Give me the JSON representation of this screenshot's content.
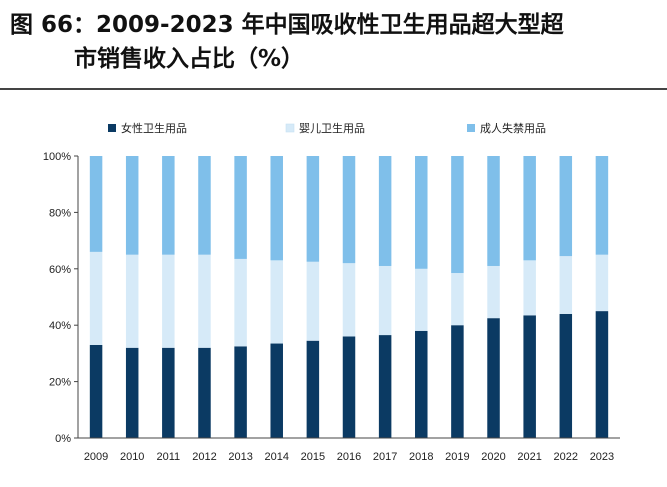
{
  "figure": {
    "title_line1": "图 66：2009-2023 年中国吸收性卫生用品超大型超",
    "title_line2": "市销售收入占比（%）"
  },
  "chart_data": {
    "type": "bar",
    "stacked": true,
    "categories": [
      "2009",
      "2010",
      "2011",
      "2012",
      "2013",
      "2014",
      "2015",
      "2016",
      "2017",
      "2018",
      "2019",
      "2020",
      "2021",
      "2022",
      "2023"
    ],
    "series": [
      {
        "name": "女性卫生用品",
        "color": "#0b3a63",
        "values": [
          33,
          32,
          32,
          32,
          32.5,
          33.5,
          34.5,
          36,
          36.5,
          38,
          40,
          42.5,
          43.5,
          44,
          45
        ]
      },
      {
        "name": "婴儿卫生用品",
        "color": "#d6eaf8",
        "values": [
          33,
          33,
          33,
          33,
          31,
          29.5,
          28,
          26,
          24.5,
          22,
          18.5,
          18.5,
          19.5,
          20.5,
          20
        ]
      },
      {
        "name": "成人失禁用品",
        "color": "#7fbfea",
        "values": [
          34,
          35,
          35,
          35,
          36.5,
          37,
          37.5,
          38,
          39,
          40,
          41.5,
          39,
          37,
          35.5,
          35
        ]
      }
    ],
    "y_ticks": [
      "0%",
      "20%",
      "40%",
      "60%",
      "80%",
      "100%"
    ],
    "ylim": [
      0,
      100
    ],
    "legend_position": "top",
    "grid": false
  }
}
